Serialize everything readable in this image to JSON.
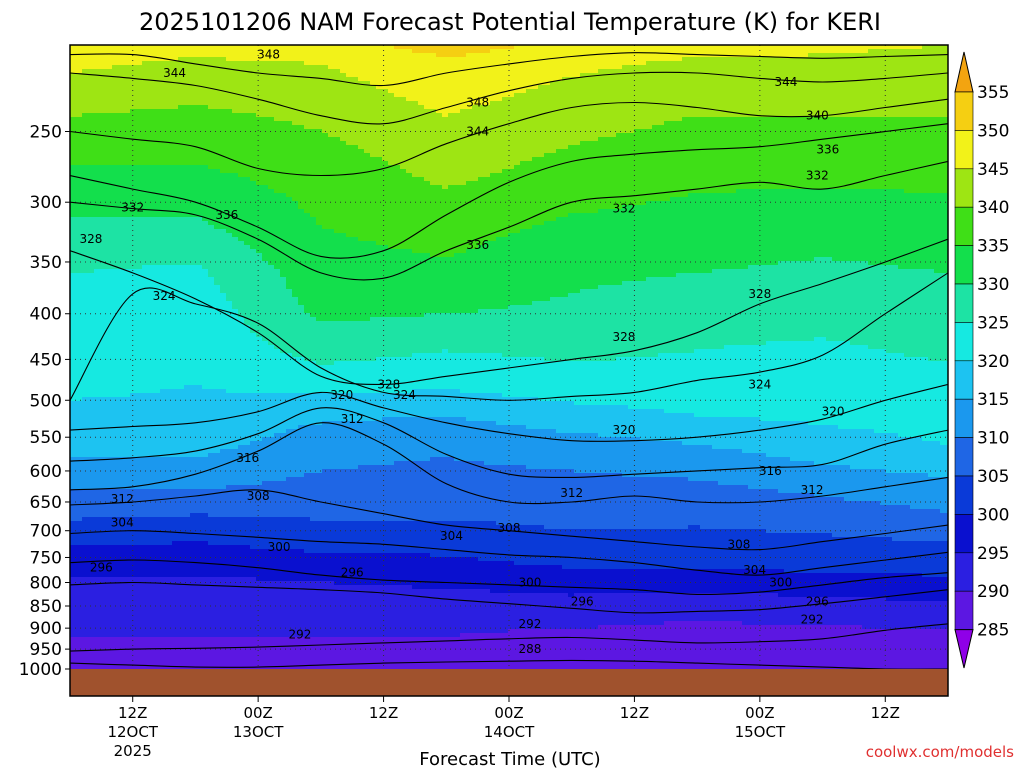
{
  "chart_data": {
    "type": "heatmap",
    "title": "2025101206 NAM Forecast Potential Temperature (K) for KERI",
    "xlabel": "Forecast Time (UTC)",
    "ylabel": "",
    "credit": "coolwx.com/models",
    "y_axis": {
      "scale": "log",
      "range": [
        1000,
        200
      ],
      "ticks": [
        250,
        300,
        350,
        400,
        450,
        500,
        550,
        600,
        650,
        700,
        750,
        800,
        850,
        900,
        950,
        1000
      ],
      "ground_level": 1000,
      "gridlines": "dotted"
    },
    "x_axis": {
      "range_hours": [
        0,
        84
      ],
      "ticks": [
        {
          "hour": 6,
          "lines": [
            "12Z",
            "12OCT",
            "2025"
          ]
        },
        {
          "hour": 18,
          "lines": [
            "00Z",
            "13OCT"
          ]
        },
        {
          "hour": 30,
          "lines": [
            "12Z"
          ]
        },
        {
          "hour": 42,
          "lines": [
            "00Z",
            "14OCT"
          ]
        },
        {
          "hour": 54,
          "lines": [
            "12Z"
          ]
        },
        {
          "hour": 66,
          "lines": [
            "00Z",
            "15OCT"
          ]
        },
        {
          "hour": 78,
          "lines": [
            "12Z"
          ]
        }
      ]
    },
    "colorbar": {
      "levels": [
        285,
        290,
        295,
        300,
        305,
        310,
        315,
        320,
        325,
        330,
        335,
        340,
        345,
        350,
        355
      ],
      "colors": [
        "#8f00e8",
        "#5c17e2",
        "#2b1fe1",
        "#0a10cf",
        "#0a3ad8",
        "#1f66e5",
        "#1b98ee",
        "#1dc3f1",
        "#16e9e1",
        "#1de3a4",
        "#13df4c",
        "#3fdf17",
        "#9ee513",
        "#f2f219",
        "#f5cf12",
        "#f3a410"
      ],
      "extend": "both"
    },
    "contours": [
      {
        "value": 288,
        "pressures": [
          985,
          990,
          995,
          995,
          990,
          985,
          982,
          980,
          978,
          980,
          985,
          990,
          995,
          1000,
          1000
        ]
      },
      {
        "value": 292,
        "pressures": [
          955,
          950,
          948,
          945,
          940,
          935,
          930,
          925,
          922,
          928,
          935,
          932,
          925,
          905,
          890
        ]
      },
      {
        "value": 296,
        "pressures": [
          805,
          800,
          805,
          810,
          815,
          822,
          835,
          845,
          855,
          865,
          862,
          858,
          845,
          830,
          815
        ]
      },
      {
        "value": 300,
        "pressures": [
          760,
          755,
          760,
          770,
          785,
          795,
          800,
          805,
          810,
          815,
          825,
          820,
          805,
          790,
          780
        ]
      },
      {
        "value": 304,
        "pressures": [
          705,
          700,
          705,
          712,
          720,
          725,
          735,
          745,
          750,
          760,
          775,
          785,
          770,
          755,
          740
        ]
      },
      {
        "value": 308,
        "pressures": [
          655,
          650,
          640,
          630,
          650,
          670,
          690,
          700,
          710,
          720,
          730,
          735,
          720,
          705,
          690
        ]
      },
      {
        "value": 312,
        "pressures": [
          630,
          625,
          605,
          570,
          530,
          560,
          620,
          650,
          650,
          640,
          650,
          650,
          640,
          625,
          610
        ]
      },
      {
        "value": 316,
        "pressures": [
          585,
          580,
          570,
          545,
          510,
          530,
          575,
          605,
          610,
          605,
          600,
          595,
          590,
          560,
          540
        ]
      },
      {
        "value": 320,
        "pressures": [
          540,
          535,
          530,
          515,
          490,
          510,
          530,
          545,
          555,
          555,
          550,
          540,
          525,
          500,
          480
        ]
      },
      {
        "value": 324,
        "pressures": [
          500,
          380,
          390,
          410,
          460,
          490,
          495,
          500,
          495,
          490,
          475,
          465,
          445,
          400,
          360
        ]
      },
      {
        "value": 328,
        "pressures": [
          340,
          360,
          385,
          420,
          470,
          480,
          470,
          460,
          450,
          440,
          420,
          390,
          370,
          350,
          330
        ]
      },
      {
        "value": 332,
        "pressures": [
          300,
          305,
          310,
          330,
          360,
          365,
          340,
          320,
          300,
          295,
          290,
          285,
          290,
          280,
          270
        ]
      },
      {
        "value": 336,
        "pressures": [
          280,
          290,
          300,
          320,
          345,
          340,
          310,
          285,
          270,
          265,
          262,
          260,
          255,
          250,
          245
        ]
      },
      {
        "value": 340,
        "pressures": [
          250,
          255,
          260,
          275,
          280,
          275,
          258,
          245,
          235,
          232,
          235,
          240,
          240,
          235,
          230
        ]
      },
      {
        "value": 344,
        "pressures": [
          215,
          218,
          222,
          230,
          240,
          245,
          235,
          225,
          218,
          215,
          215,
          218,
          220,
          218,
          215
        ]
      },
      {
        "value": 348,
        "pressures": [
          205,
          205,
          210,
          215,
          218,
          222,
          215,
          210,
          206,
          204,
          205,
          206,
          207,
          206,
          205
        ]
      }
    ],
    "contour_x_hours": [
      0,
      6,
      12,
      18,
      24,
      30,
      36,
      42,
      48,
      54,
      60,
      66,
      72,
      78,
      84
    ],
    "contour_labels": [
      {
        "value": 344,
        "hour": 10,
        "p": 215
      },
      {
        "value": 348,
        "hour": 19,
        "p": 205
      },
      {
        "value": 348,
        "hour": 39,
        "p": 232
      },
      {
        "value": 344,
        "hour": 39,
        "p": 250
      },
      {
        "value": 344,
        "hour": 68.5,
        "p": 220
      },
      {
        "value": 340,
        "hour": 71.5,
        "p": 240
      },
      {
        "value": 336,
        "hour": 72.5,
        "p": 262
      },
      {
        "value": 332,
        "hour": 71.5,
        "p": 280
      },
      {
        "value": 332,
        "hour": 6,
        "p": 304
      },
      {
        "value": 336,
        "hour": 15,
        "p": 310
      },
      {
        "value": 328,
        "hour": 2,
        "p": 330
      },
      {
        "value": 332,
        "hour": 53,
        "p": 305
      },
      {
        "value": 336,
        "hour": 39,
        "p": 335
      },
      {
        "value": 324,
        "hour": 9,
        "p": 382
      },
      {
        "value": 328,
        "hour": 66,
        "p": 380
      },
      {
        "value": 328,
        "hour": 53,
        "p": 425
      },
      {
        "value": 328,
        "hour": 30.5,
        "p": 480
      },
      {
        "value": 320,
        "hour": 26,
        "p": 493
      },
      {
        "value": 324,
        "hour": 32,
        "p": 493
      },
      {
        "value": 324,
        "hour": 66,
        "p": 480
      },
      {
        "value": 320,
        "hour": 73,
        "p": 515
      },
      {
        "value": 312,
        "hour": 27,
        "p": 525
      },
      {
        "value": 320,
        "hour": 53,
        "p": 540
      },
      {
        "value": 316,
        "hour": 17,
        "p": 580
      },
      {
        "value": 316,
        "hour": 67,
        "p": 600
      },
      {
        "value": 308,
        "hour": 18,
        "p": 640
      },
      {
        "value": 312,
        "hour": 48,
        "p": 635
      },
      {
        "value": 312,
        "hour": 71,
        "p": 630
      },
      {
        "value": 312,
        "hour": 5,
        "p": 645
      },
      {
        "value": 304,
        "hour": 5,
        "p": 685
      },
      {
        "value": 308,
        "hour": 42,
        "p": 695
      },
      {
        "value": 304,
        "hour": 36.5,
        "p": 710
      },
      {
        "value": 308,
        "hour": 64,
        "p": 725
      },
      {
        "value": 300,
        "hour": 20,
        "p": 730
      },
      {
        "value": 296,
        "hour": 3,
        "p": 770
      },
      {
        "value": 296,
        "hour": 27,
        "p": 780
      },
      {
        "value": 304,
        "hour": 65.5,
        "p": 775
      },
      {
        "value": 300,
        "hour": 44,
        "p": 800
      },
      {
        "value": 300,
        "hour": 68,
        "p": 800
      },
      {
        "value": 296,
        "hour": 49,
        "p": 840
      },
      {
        "value": 296,
        "hour": 71.5,
        "p": 840
      },
      {
        "value": 292,
        "hour": 44,
        "p": 890
      },
      {
        "value": 292,
        "hour": 71,
        "p": 880
      },
      {
        "value": 292,
        "hour": 22,
        "p": 915
      },
      {
        "value": 288,
        "hour": 44,
        "p": 950
      }
    ],
    "fill_profile": {
      "pressures": [
        1000,
        960,
        920,
        880,
        840,
        800,
        760,
        720,
        680,
        640,
        600,
        560,
        520,
        480,
        440,
        400,
        360,
        320,
        280,
        240,
        210,
        200
      ],
      "hours": [
        0,
        12,
        24,
        36,
        48,
        60,
        72,
        84
      ],
      "theta": [
        [
          289,
          289,
          290,
          291,
          292,
          294,
          297,
          301,
          305,
          309,
          313,
          317,
          319,
          321,
          322,
          323,
          325,
          329,
          334,
          340,
          346,
          348
        ],
        [
          289,
          289,
          290,
          291,
          292,
          294,
          297,
          300,
          304,
          309,
          313,
          317,
          319,
          320,
          321,
          322,
          324,
          329,
          334,
          339,
          344,
          347
        ],
        [
          288,
          289,
          290,
          291,
          292,
          295,
          298,
          302,
          305,
          308,
          310,
          312,
          316,
          322,
          327,
          331,
          333,
          335,
          337,
          341,
          345,
          348
        ],
        [
          288,
          289,
          290,
          291,
          293,
          296,
          299,
          302,
          305,
          307,
          309,
          311,
          315,
          321,
          325,
          330,
          334,
          337,
          341,
          345,
          349,
          352
        ],
        [
          287,
          288,
          289,
          291,
          294,
          297,
          301,
          304,
          306,
          308,
          310,
          313,
          318,
          323,
          326,
          329,
          331,
          334,
          338,
          342,
          346,
          349
        ],
        [
          287,
          288,
          289,
          290,
          293,
          297,
          301,
          303,
          306,
          308,
          311,
          315,
          320,
          323,
          325,
          327,
          330,
          333,
          336,
          340,
          344,
          347
        ],
        [
          285,
          286,
          288,
          291,
          294,
          298,
          302,
          304,
          307,
          310,
          314,
          318,
          321,
          322,
          324,
          327,
          329,
          332,
          336,
          340,
          344,
          346
        ],
        [
          286,
          287,
          289,
          292,
          295,
          299,
          302,
          305,
          309,
          312,
          316,
          320,
          322,
          323,
          326,
          328,
          330,
          333,
          336,
          340,
          343,
          345
        ]
      ]
    }
  }
}
